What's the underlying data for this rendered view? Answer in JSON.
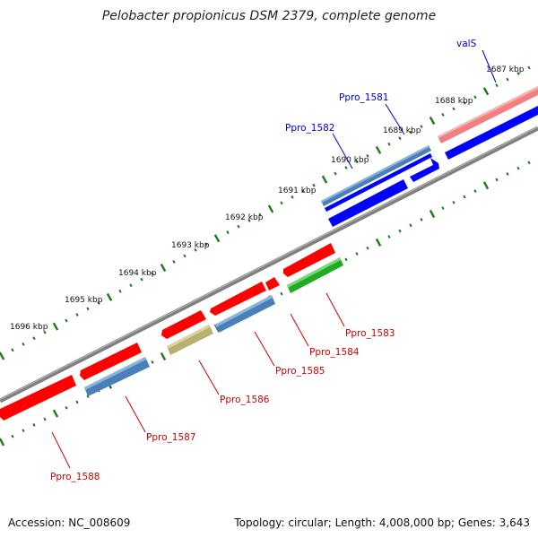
{
  "title": "Pelobacter propionicus DSM 2379, complete genome",
  "footer": {
    "accession": "Accession: NC_008609",
    "topology": "Topology: circular; Length: 4,008,000 bp; Genes: 3,643"
  },
  "colors": {
    "background": "#ffffff",
    "backbone": "#808080",
    "ticks": "#1b7a1b",
    "label_forward": "#0000cc",
    "label_reverse": "#cc0000",
    "gene_red": "#ff0000",
    "gene_blue": "#0000ff",
    "gene_steelblue": "#4a7fb8",
    "gene_pink": "#f08080",
    "gene_green": "#22aa22",
    "gene_khaki": "#b8b070"
  },
  "scale": {
    "labels": [
      "1687 kbp",
      "1688 kbp",
      "1689 kbp",
      "1690 kbp",
      "1691 kbp",
      "1692 kbp",
      "1693 kbp",
      "1694 kbp",
      "1695 kbp",
      "1696 kbp"
    ]
  },
  "genes": [
    {
      "label": "valS",
      "strand": "forward",
      "color": "pink"
    },
    {
      "label": "",
      "strand": "forward",
      "color": "blue"
    },
    {
      "label": "Ppro_1581",
      "strand": "forward",
      "color": "blue"
    },
    {
      "label": "Ppro_1582",
      "strand": "forward",
      "color": "steelblue"
    },
    {
      "label": "",
      "strand": "forward",
      "color": "blue"
    },
    {
      "label": "Ppro_1583",
      "strand": "reverse",
      "color": "green"
    },
    {
      "label": "",
      "strand": "reverse",
      "color": "red"
    },
    {
      "label": "Ppro_1584",
      "strand": "reverse",
      "color": "red"
    },
    {
      "label": "",
      "strand": "reverse",
      "color": "red"
    },
    {
      "label": "Ppro_1585",
      "strand": "reverse",
      "color": "steelblue"
    },
    {
      "label": "",
      "strand": "reverse",
      "color": "red"
    },
    {
      "label": "Ppro_1586",
      "strand": "reverse",
      "color": "khaki"
    },
    {
      "label": "",
      "strand": "reverse",
      "color": "red"
    },
    {
      "label": "Ppro_1587",
      "strand": "reverse",
      "color": "steelblue"
    },
    {
      "label": "Ppro_1588",
      "strand": "reverse",
      "color": "red"
    }
  ]
}
